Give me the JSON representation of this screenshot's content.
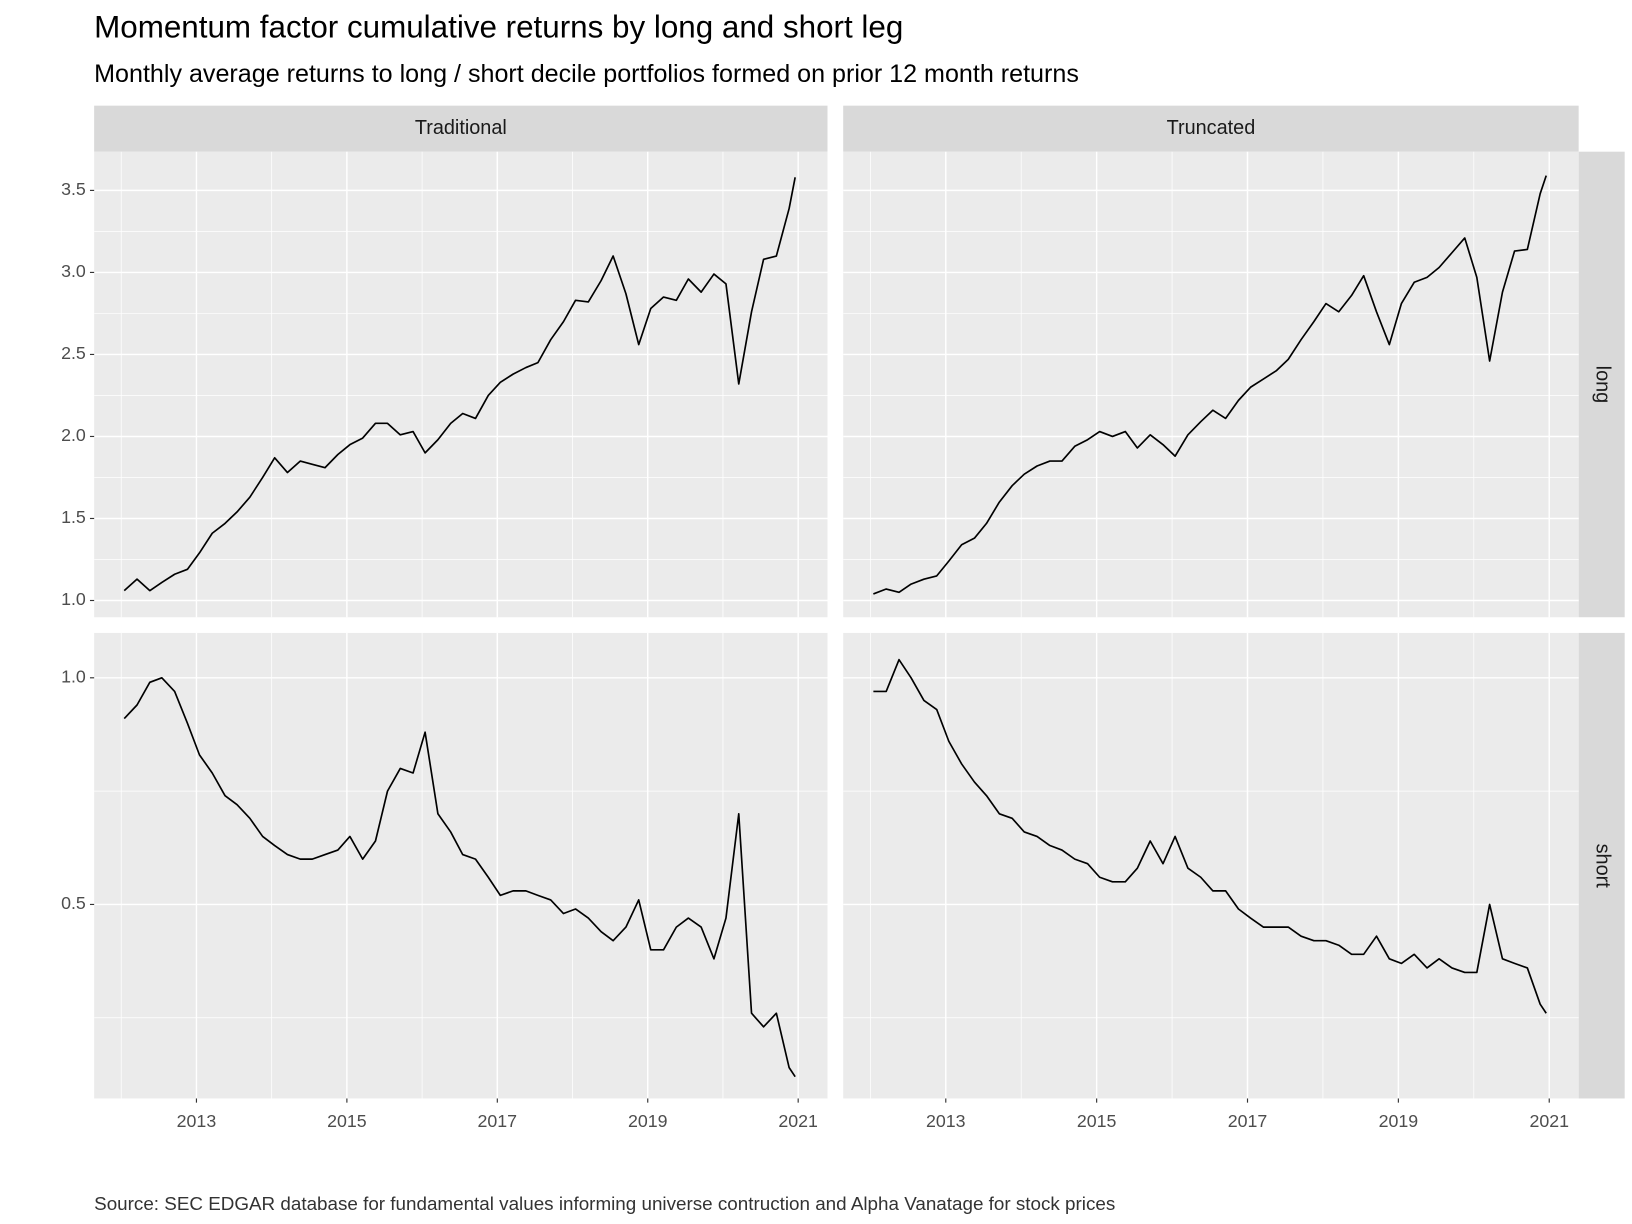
{
  "chart_data": {
    "type": "line",
    "title": "Momentum factor cumulative returns by long and short leg",
    "subtitle": "Monthly average returns to long / short decile portfolios formed on prior 12 month returns",
    "caption": "Source: SEC EDGAR database for fundamental values informing universe contruction and Alpha Vanatage for stock prices",
    "color": "#000000",
    "grid": true,
    "columns": [
      "Traditional",
      "Truncated"
    ],
    "xlim": [
      2011.64,
      2021.39
    ],
    "xticks": [
      2013,
      2015,
      2017,
      2019,
      2021
    ],
    "x": [
      2012.04,
      2012.21,
      2012.38,
      2012.54,
      2012.71,
      2012.88,
      2013.04,
      2013.21,
      2013.38,
      2013.54,
      2013.71,
      2013.88,
      2014.04,
      2014.21,
      2014.38,
      2014.54,
      2014.71,
      2014.88,
      2015.04,
      2015.21,
      2015.38,
      2015.54,
      2015.71,
      2015.88,
      2016.04,
      2016.21,
      2016.38,
      2016.54,
      2016.71,
      2016.88,
      2017.04,
      2017.21,
      2017.38,
      2017.54,
      2017.71,
      2017.88,
      2018.04,
      2018.21,
      2018.38,
      2018.54,
      2018.71,
      2018.88,
      2019.04,
      2019.21,
      2019.38,
      2019.54,
      2019.71,
      2019.88,
      2020.04,
      2020.21,
      2020.38,
      2020.54,
      2020.71,
      2020.88,
      2020.96
    ],
    "rows": [
      {
        "label": "long",
        "ylim": [
          0.898,
          3.736
        ],
        "yticks": [
          {
            "value": 1,
            "label": "1.0"
          },
          1.5,
          {
            "value": 2,
            "label": "2.0"
          },
          2.5,
          {
            "value": 3,
            "label": "3.0"
          },
          3.5
        ],
        "series": [
          {
            "values": [
              1.06,
              1.13,
              1.06,
              1.11,
              1.16,
              1.19,
              1.29,
              1.41,
              1.47,
              1.54,
              1.63,
              1.75,
              1.87,
              1.78,
              1.85,
              1.83,
              1.81,
              1.89,
              1.95,
              1.99,
              2.08,
              2.08,
              2.01,
              2.03,
              1.9,
              1.98,
              2.08,
              2.14,
              2.11,
              2.25,
              2.33,
              2.38,
              2.42,
              2.45,
              2.59,
              2.7,
              2.83,
              2.82,
              2.95,
              3.1,
              2.87,
              2.56,
              2.78,
              2.85,
              2.83,
              2.96,
              2.88,
              2.99,
              2.93,
              2.32,
              2.76,
              3.08,
              3.1,
              3.39,
              3.58
            ]
          },
          {
            "values": [
              1.04,
              1.07,
              1.05,
              1.1,
              1.13,
              1.15,
              1.24,
              1.34,
              1.38,
              1.47,
              1.6,
              1.7,
              1.77,
              1.82,
              1.85,
              1.85,
              1.94,
              1.98,
              2.03,
              2.0,
              2.03,
              1.93,
              2.01,
              1.95,
              1.88,
              2.01,
              2.09,
              2.16,
              2.11,
              2.22,
              2.3,
              2.35,
              2.4,
              2.47,
              2.59,
              2.7,
              2.81,
              2.76,
              2.86,
              2.98,
              2.76,
              2.56,
              2.81,
              2.94,
              2.97,
              3.03,
              3.12,
              3.21,
              2.97,
              2.46,
              2.88,
              3.13,
              3.14,
              3.48,
              3.59
            ]
          }
        ]
      },
      {
        "label": "short",
        "ylim": [
          0.072,
          1.099
        ],
        "yticks": [
          0.5,
          {
            "value": 1,
            "label": "1.0"
          }
        ],
        "series": [
          {
            "values": [
              0.91,
              0.94,
              0.99,
              1.0,
              0.97,
              0.9,
              0.83,
              0.79,
              0.74,
              0.72,
              0.69,
              0.65,
              0.63,
              0.61,
              0.6,
              0.6,
              0.61,
              0.62,
              0.65,
              0.6,
              0.64,
              0.75,
              0.8,
              0.79,
              0.88,
              0.7,
              0.66,
              0.61,
              0.6,
              0.56,
              0.52,
              0.53,
              0.53,
              0.52,
              0.51,
              0.48,
              0.49,
              0.47,
              0.44,
              0.42,
              0.45,
              0.51,
              0.4,
              0.4,
              0.45,
              0.47,
              0.45,
              0.38,
              0.47,
              0.7,
              0.26,
              0.23,
              0.26,
              0.14,
              0.12
            ]
          },
          {
            "values": [
              0.97,
              0.97,
              1.04,
              1.0,
              0.95,
              0.93,
              0.86,
              0.81,
              0.77,
              0.74,
              0.7,
              0.69,
              0.66,
              0.65,
              0.63,
              0.62,
              0.6,
              0.59,
              0.56,
              0.55,
              0.55,
              0.58,
              0.64,
              0.59,
              0.65,
              0.58,
              0.56,
              0.53,
              0.53,
              0.49,
              0.47,
              0.45,
              0.45,
              0.45,
              0.43,
              0.42,
              0.42,
              0.41,
              0.39,
              0.39,
              0.43,
              0.38,
              0.37,
              0.39,
              0.36,
              0.38,
              0.36,
              0.35,
              0.35,
              0.5,
              0.38,
              0.37,
              0.36,
              0.28,
              0.26
            ]
          }
        ]
      }
    ]
  }
}
